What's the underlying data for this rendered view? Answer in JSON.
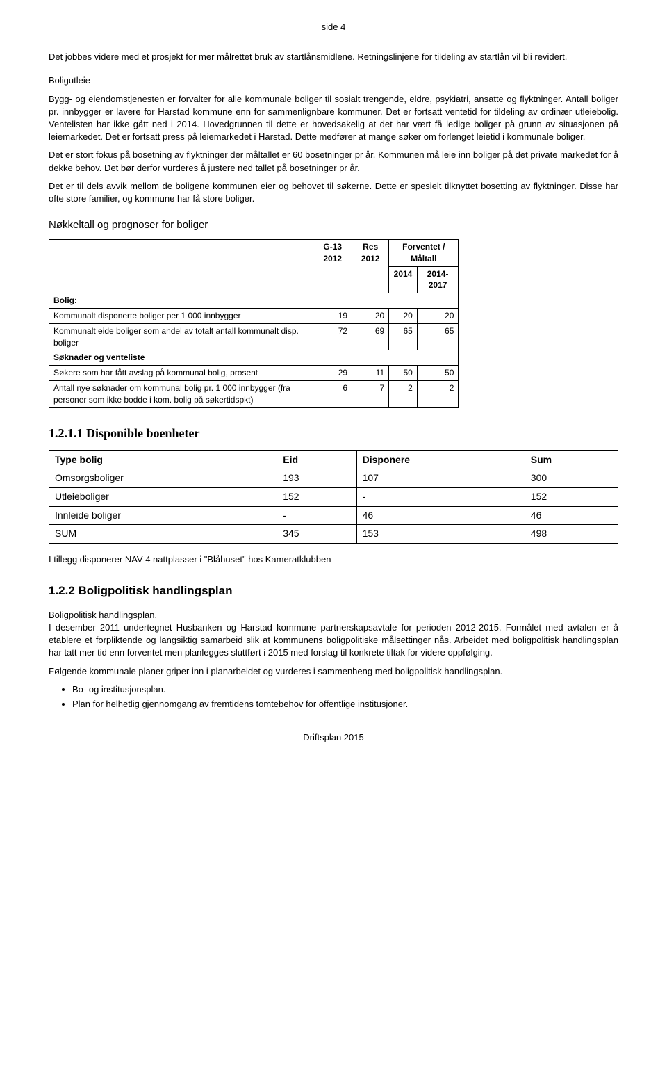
{
  "page_label": "side 4",
  "intro_p1": "Det jobbes videre med et prosjekt for mer målrettet bruk av startlånsmidlene. Retningslinjene for tildeling av startlån vil bli revidert.",
  "section_boligutleie_title": "Boligutleie",
  "boligutleie_p1": "Bygg- og eiendomstjenesten er forvalter for alle kommunale boliger til sosialt trengende, eldre, psykiatri, ansatte og flyktninger. Antall boliger pr. innbygger er lavere for Harstad kommune enn for sammenlignbare kommuner. Det er fortsatt ventetid for tildeling av ordinær utleiebolig. Ventelisten har ikke gått ned i 2014. Hovedgrunnen til dette er hovedsakelig at det har vært få ledige boliger på grunn av situasjonen på leiemarkedet. Det er fortsatt press på leiemarkedet i Harstad. Dette medfører at mange søker om forlenget leietid i kommunale boliger.",
  "boligutleie_p2": "Det er stort fokus på bosetning av flyktninger der måltallet er 60 bosetninger pr år. Kommunen må leie inn boliger på det private markedet for å dekke behov. Det bør derfor vurderes å justere ned tallet på bosetninger pr år.",
  "boligutleie_p3": "Det er til dels avvik mellom de boligene kommunen eier og behovet til søkerne. Dette er spesielt tilknyttet bosetting av flyktninger. Disse har ofte store familier, og kommune har få store boliger.",
  "table1_title": "Nøkkeltall og prognoser for boliger",
  "table1": {
    "head": {
      "c1": "G-13 2012",
      "c2": "Res 2012",
      "c3": "Forventet / Måltall",
      "c3a": "2014",
      "c3b": "2014-2017"
    },
    "section_bolig": "Bolig:",
    "rows": [
      {
        "label": "Kommunalt disponerte boliger per 1 000 innbygger",
        "v": [
          "19",
          "20",
          "20",
          "20"
        ]
      },
      {
        "label": "Kommunalt eide boliger som andel av totalt antall kommunalt disp. boliger",
        "v": [
          "72",
          "69",
          "65",
          "65"
        ]
      }
    ],
    "section_soknader": "Søknader og venteliste",
    "rows2": [
      {
        "label": "Søkere som har fått avslag på kommunal bolig, prosent",
        "v": [
          "29",
          "11",
          "50",
          "50"
        ]
      },
      {
        "label": "Antall nye søknader om kommunal bolig pr. 1 000 innbygger (fra personer som ikke bodde i kom. bolig på søkertidspkt)",
        "v": [
          "6",
          "7",
          "2",
          "2"
        ]
      }
    ]
  },
  "h_1211": "1.2.1.1 Disponible boenheter",
  "table2": {
    "head": [
      "Type bolig",
      "Eid",
      "Disponere",
      "Sum"
    ],
    "rows": [
      [
        "Omsorgsboliger",
        "193",
        "107",
        "300"
      ],
      [
        "Utleieboliger",
        "152",
        "-",
        "152"
      ],
      [
        "Innleide boliger",
        "-",
        "46",
        "46"
      ],
      [
        "SUM",
        "345",
        "153",
        "498"
      ]
    ]
  },
  "nav_note": "I tillegg disponerer NAV 4 nattplasser i \"Blåhuset\" hos Kameratklubben",
  "h_122": "1.2.2  Boligpolitisk handlingsplan",
  "bhp_p1_lead": "Boligpolitisk handlingsplan.",
  "bhp_p1": "I desember 2011 undertegnet Husbanken og Harstad kommune partnerskapsavtale for perioden 2012-2015. Formålet med avtalen er å etablere et forpliktende og langsiktig samarbeid slik at kommunens boligpolitiske målsettinger nås. Arbeidet med boligpolitisk handlingsplan har tatt mer tid enn forventet men planlegges sluttført i 2015 med forslag til konkrete tiltak for videre oppfølging.",
  "bhp_p2": "Følgende kommunale planer griper inn i planarbeidet og vurderes i sammenheng med boligpolitisk handlingsplan.",
  "bullets": [
    "Bo- og institusjonsplan.",
    "Plan for helhetlig gjennomgang av fremtidens tomtebehov for offentlige institusjoner."
  ],
  "footer": "Driftsplan 2015"
}
